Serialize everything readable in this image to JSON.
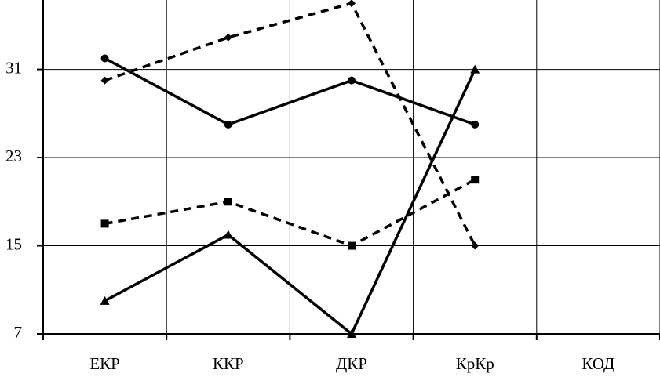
{
  "chart_data": {
    "type": "line",
    "categories": [
      "ЕКР",
      "ККР",
      "ДКР",
      "КрКр",
      "КОД"
    ],
    "series": [
      {
        "color": "#000000",
        "dash": false,
        "marker": "circle",
        "values": [
          32,
          26,
          30,
          26,
          null
        ]
      },
      {
        "color": "#000000",
        "dash": true,
        "marker": "diamond",
        "values": [
          30,
          33.9,
          37,
          15,
          null
        ]
      },
      {
        "color": "#000000",
        "dash": true,
        "marker": "square",
        "values": [
          17,
          19,
          15,
          21,
          null
        ]
      },
      {
        "color": "#000000",
        "dash": false,
        "marker": "triangle",
        "values": [
          10,
          16,
          7,
          31,
          null
        ]
      }
    ],
    "ylim": [
      7,
      37.3
    ],
    "yticks": [
      7,
      15,
      23,
      31
    ],
    "grid": true
  }
}
